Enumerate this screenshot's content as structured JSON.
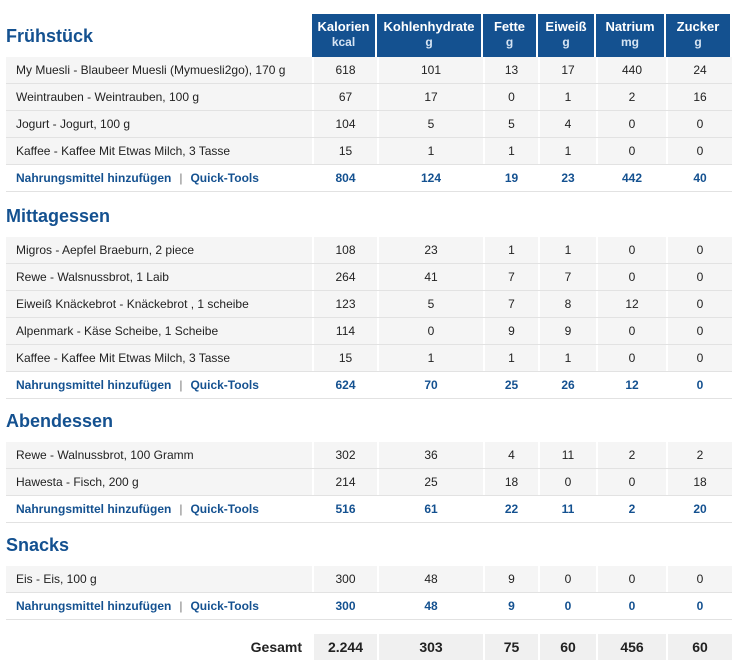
{
  "columns": [
    {
      "name": "Kalorien",
      "unit": "kcal"
    },
    {
      "name": "Kohlenhydrate",
      "unit": "g"
    },
    {
      "name": "Fette",
      "unit": "g"
    },
    {
      "name": "Eiweiß",
      "unit": "g"
    },
    {
      "name": "Natrium",
      "unit": "mg"
    },
    {
      "name": "Zucker",
      "unit": "g"
    }
  ],
  "actions": {
    "add_food": "Nahrungsmittel hinzufügen",
    "separator": "|",
    "quick_tools": "Quick-Tools"
  },
  "meals": [
    {
      "title": "Frühstück",
      "items": [
        {
          "name": "My Muesli - Blaubeer Muesli (Mymuesli2go), 170 g",
          "values": [
            "618",
            "101",
            "13",
            "17",
            "440",
            "24"
          ]
        },
        {
          "name": "Weintrauben - Weintrauben, 100 g",
          "values": [
            "67",
            "17",
            "0",
            "1",
            "2",
            "16"
          ]
        },
        {
          "name": "Jogurt - Jogurt, 100 g",
          "values": [
            "104",
            "5",
            "5",
            "4",
            "0",
            "0"
          ]
        },
        {
          "name": "Kaffee - Kaffee Mit Etwas Milch, 3 Tasse",
          "values": [
            "15",
            "1",
            "1",
            "1",
            "0",
            "0"
          ]
        }
      ],
      "totals": [
        "804",
        "124",
        "19",
        "23",
        "442",
        "40"
      ]
    },
    {
      "title": "Mittagessen",
      "items": [
        {
          "name": "Migros - Aepfel Braeburn, 2 piece",
          "values": [
            "108",
            "23",
            "1",
            "1",
            "0",
            "0"
          ]
        },
        {
          "name": "Rewe - Walsnussbrot, 1 Laib",
          "values": [
            "264",
            "41",
            "7",
            "7",
            "0",
            "0"
          ]
        },
        {
          "name": "Eiweiß Knäckebrot - Knäckebrot , 1 scheibe",
          "values": [
            "123",
            "5",
            "7",
            "8",
            "12",
            "0"
          ]
        },
        {
          "name": "Alpenmark - Käse Scheibe, 1 Scheibe",
          "values": [
            "114",
            "0",
            "9",
            "9",
            "0",
            "0"
          ]
        },
        {
          "name": "Kaffee - Kaffee Mit Etwas Milch, 3 Tasse",
          "values": [
            "15",
            "1",
            "1",
            "1",
            "0",
            "0"
          ]
        }
      ],
      "totals": [
        "624",
        "70",
        "25",
        "26",
        "12",
        "0"
      ]
    },
    {
      "title": "Abendessen",
      "items": [
        {
          "name": "Rewe - Walnussbrot, 100 Gramm",
          "values": [
            "302",
            "36",
            "4",
            "11",
            "2",
            "2"
          ]
        },
        {
          "name": "Hawesta - Fisch, 200 g",
          "values": [
            "214",
            "25",
            "18",
            "0",
            "0",
            "18"
          ]
        }
      ],
      "totals": [
        "516",
        "61",
        "22",
        "11",
        "2",
        "20"
      ]
    },
    {
      "title": "Snacks",
      "items": [
        {
          "name": "Eis - Eis, 100 g",
          "values": [
            "300",
            "48",
            "9",
            "0",
            "0",
            "0"
          ]
        }
      ],
      "totals": [
        "300",
        "48",
        "9",
        "0",
        "0",
        "0"
      ]
    }
  ],
  "grand_total": {
    "label": "Gesamt",
    "values": [
      "2.244",
      "303",
      "75",
      "60",
      "456",
      "60"
    ]
  }
}
